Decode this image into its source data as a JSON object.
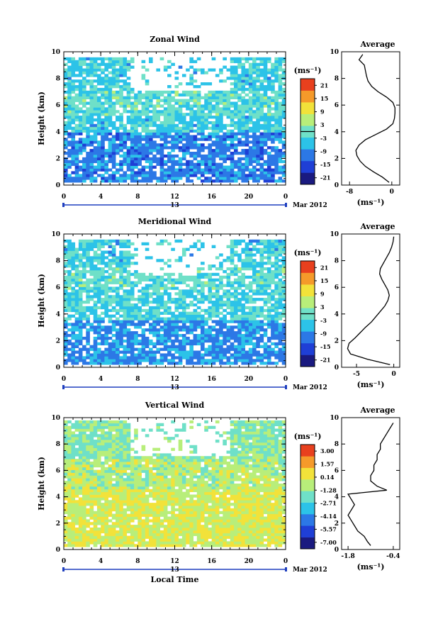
{
  "chart_data": [
    {
      "type": "heatmap",
      "title": "Zonal Wind",
      "ylabel": "Height (km)",
      "xlabel": "",
      "x_ticks": [
        "0",
        "4",
        "8",
        "12",
        "16",
        "20",
        "0"
      ],
      "y_ticks": [
        "0",
        "2",
        "4",
        "6",
        "8",
        "10"
      ],
      "date_label": "13",
      "date_suffix": "Mar 2012",
      "xlim": [
        0,
        24
      ],
      "ylim": [
        0,
        10
      ],
      "unit_label": "(ms⁻¹)",
      "colorbar_ticks": [
        "21",
        "15",
        "9",
        "3",
        "-3",
        "-9",
        "-15",
        "-21"
      ],
      "colorbar_range": [
        -24,
        24
      ],
      "zero_line": 0,
      "gap_fraction": 0.18,
      "field_layers": [
        {
          "y_from": 0.3,
          "y_to": 4.0,
          "value": -10
        },
        {
          "y_from": 4.0,
          "y_to": 5.2,
          "value": -4
        },
        {
          "y_from": 5.2,
          "y_to": 7.0,
          "value": -1
        },
        {
          "y_from": 7.0,
          "y_to": 9.5,
          "value": -4
        }
      ],
      "average": {
        "title": "Average",
        "xlabel": "(ms⁻¹)",
        "x_ticks": [
          "-8",
          "0"
        ],
        "xlim": [
          -9.5,
          1.5
        ],
        "heights": [
          0.2,
          0.6,
          1.0,
          1.4,
          1.8,
          2.2,
          2.6,
          3.0,
          3.4,
          3.8,
          4.2,
          4.6,
          5.0,
          5.4,
          5.8,
          6.2,
          6.6,
          7.0,
          7.4,
          7.8,
          8.2,
          8.6,
          9.0,
          9.4,
          9.8
        ],
        "values": [
          -0.5,
          -1.8,
          -3.5,
          -5.0,
          -6.0,
          -6.6,
          -6.8,
          -6.2,
          -5.0,
          -3.0,
          -1.0,
          0.2,
          0.5,
          0.6,
          0.6,
          0.2,
          -1.0,
          -2.6,
          -3.8,
          -4.5,
          -4.8,
          -5.0,
          -5.2,
          -6.2,
          -5.5
        ]
      }
    },
    {
      "type": "heatmap",
      "title": "Meridional Wind",
      "ylabel": "Height (km)",
      "xlabel": "",
      "x_ticks": [
        "0",
        "4",
        "8",
        "12",
        "16",
        "20",
        "0"
      ],
      "y_ticks": [
        "0",
        "2",
        "4",
        "6",
        "8",
        "10"
      ],
      "date_label": "13",
      "date_suffix": "Mar 2012",
      "xlim": [
        0,
        24
      ],
      "ylim": [
        0,
        10
      ],
      "unit_label": "(ms⁻¹)",
      "colorbar_ticks": [
        "21",
        "15",
        "9",
        "3",
        "-3",
        "-9",
        "-15",
        "-21"
      ],
      "colorbar_range": [
        -24,
        24
      ],
      "zero_line": 0,
      "gap_fraction": 0.2,
      "field_layers": [
        {
          "y_from": 0.3,
          "y_to": 3.5,
          "value": -9
        },
        {
          "y_from": 3.5,
          "y_to": 5.8,
          "value": -3
        },
        {
          "y_from": 5.8,
          "y_to": 7.6,
          "value": -1
        },
        {
          "y_from": 7.6,
          "y_to": 9.5,
          "value": -4
        }
      ],
      "average": {
        "title": "Average",
        "xlabel": "(ms⁻¹)",
        "x_ticks": [
          "-5",
          "0"
        ],
        "xlim": [
          -7,
          0.8
        ],
        "heights": [
          0.2,
          0.6,
          1.0,
          1.4,
          1.8,
          2.2,
          2.6,
          3.0,
          3.4,
          3.8,
          4.2,
          4.6,
          5.0,
          5.4,
          5.8,
          6.2,
          6.6,
          7.0,
          7.4,
          7.8,
          8.2,
          8.6,
          9.0,
          9.4,
          9.8
        ],
        "values": [
          -0.5,
          -3.5,
          -5.8,
          -6.2,
          -6.0,
          -5.2,
          -4.5,
          -3.8,
          -3.0,
          -2.4,
          -1.8,
          -1.2,
          -0.8,
          -0.6,
          -0.8,
          -1.2,
          -1.6,
          -1.9,
          -1.8,
          -1.4,
          -1.0,
          -0.6,
          -0.3,
          -0.1,
          0.0
        ]
      }
    },
    {
      "type": "heatmap",
      "title": "Vertical Wind",
      "ylabel": "Height (km)",
      "xlabel": "Local Time",
      "x_ticks": [
        "0",
        "4",
        "8",
        "12",
        "16",
        "20",
        "0"
      ],
      "y_ticks": [
        "0",
        "2",
        "4",
        "6",
        "8",
        "10"
      ],
      "date_label": "13",
      "date_suffix": "Mar 2012",
      "xlim": [
        0,
        24
      ],
      "ylim": [
        0,
        10
      ],
      "unit_label": "(ms⁻¹)",
      "colorbar_ticks": [
        "3.00",
        "1.57",
        "0.14",
        "-1.28",
        "-2.71",
        "-4.14",
        "-5.57",
        "-7.00"
      ],
      "colorbar_range": [
        -7.7,
        3.7
      ],
      "zero_line": null,
      "gap_fraction": 0.06,
      "field_layers": [
        {
          "y_from": 0.3,
          "y_to": 4.5,
          "value": -0.2
        },
        {
          "y_from": 4.5,
          "y_to": 6.8,
          "value": -0.8
        },
        {
          "y_from": 6.8,
          "y_to": 9.8,
          "value": -1.6
        }
      ],
      "average": {
        "title": "Average",
        "xlabel": "(ms⁻¹)",
        "x_ticks": [
          "-1.8",
          "-0.4"
        ],
        "xlim": [
          -2.0,
          -0.2
        ],
        "heights": [
          0.3,
          0.6,
          1.0,
          1.4,
          1.8,
          2.2,
          2.6,
          3.0,
          3.4,
          3.8,
          4.2,
          4.5,
          4.8,
          5.2,
          5.6,
          6.0,
          6.4,
          6.8,
          7.2,
          7.6,
          8.0,
          8.4,
          8.8,
          9.2,
          9.6
        ],
        "values": [
          -1.1,
          -1.2,
          -1.3,
          -1.5,
          -1.6,
          -1.7,
          -1.8,
          -1.7,
          -1.6,
          -1.7,
          -1.8,
          -0.6,
          -0.9,
          -1.1,
          -1.1,
          -1.0,
          -1.0,
          -0.9,
          -0.9,
          -0.8,
          -0.8,
          -0.7,
          -0.6,
          -0.5,
          -0.4
        ]
      }
    }
  ]
}
